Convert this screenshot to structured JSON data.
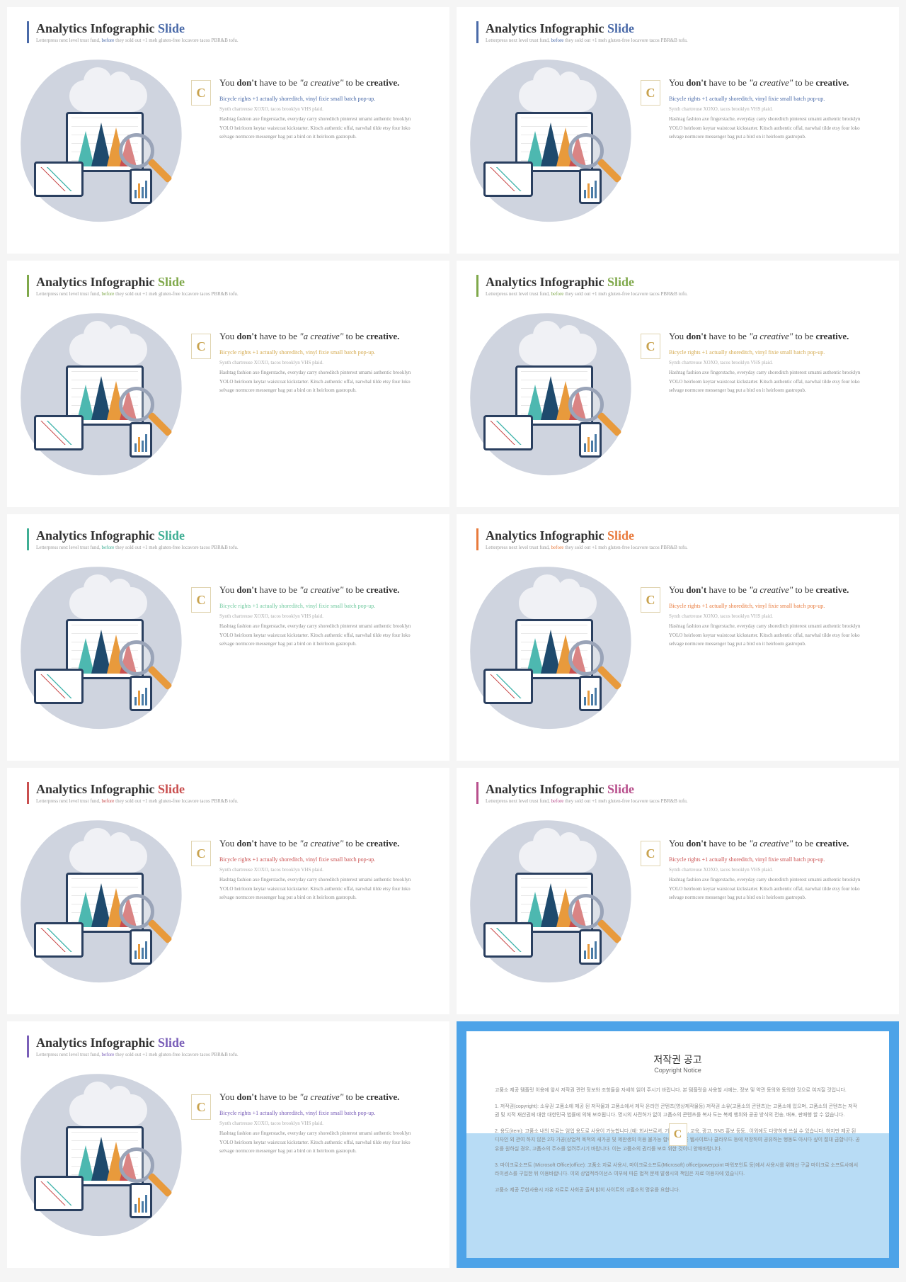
{
  "slides": [
    {
      "accent_color": "#4a6aa8",
      "highlight_color": "#4a6aa8",
      "subtitle_accent": "before"
    },
    {
      "accent_color": "#4a6aa8",
      "highlight_color": "#4a6aa8",
      "subtitle_accent": "before"
    },
    {
      "accent_color": "#7fa84a",
      "highlight_color": "#d4a94e",
      "subtitle_accent": "before"
    },
    {
      "accent_color": "#7fa84a",
      "highlight_color": "#d4a94e",
      "subtitle_accent": "before"
    },
    {
      "accent_color": "#3fae94",
      "highlight_color": "#6fc99e",
      "subtitle_accent": "before"
    },
    {
      "accent_color": "#e87a3c",
      "highlight_color": "#e87a3c",
      "subtitle_accent": "before"
    },
    {
      "accent_color": "#c94f4f",
      "highlight_color": "#c94f4f",
      "subtitle_accent": "before"
    },
    {
      "accent_color": "#b84f8c",
      "highlight_color": "#c94f4f",
      "subtitle_accent": "before"
    },
    {
      "accent_color": "#7a5fb8",
      "highlight_color": "#7a5fb8",
      "subtitle_accent": "before"
    }
  ],
  "common": {
    "title_prefix": "Analytics Infographic ",
    "title_accent": "Slide",
    "subtitle_pre": "Letterpress next level trust fund, ",
    "subtitle_accent_word": "before",
    "subtitle_post": " they sold out +1 meh gluten-free locavore tacos PBR&B tofu.",
    "quote_1": "You ",
    "quote_2": "don't",
    "quote_3": " have to be ",
    "quote_4": "\"a creative\"",
    "quote_5": " to be ",
    "quote_6": "creative.",
    "highlight_text": "Bicycle rights +1 actually shoreditch, vinyl fixie small batch pop-up.",
    "gray_text": "Synth chartreuse XOXO, tacos brooklyn VHS plaid.",
    "body_text": "Hashtag fashion axe fingerstache, everyday carry shoreditch pinterest umami authentic brooklyn YOLO heirloom keytar waistcoat kickstarter. Kitsch authentic offal, narwhal tilde etsy four loko selvage normcore messenger bag put a bird on it heirloom gastropub.",
    "badge_letter": "C"
  },
  "copyright": {
    "title": "저작권 공고",
    "subtitle": "Copyright Notice",
    "p1": "고품소 제공 템플릿 이용에 앞서 저작권 관련 정보와 조항들을 자세히 읽어 주시기 바랍니다. 본 템플릿을 사용할 시에는, 정보 및 약관 동의와 동의한 것으로 여겨질 것입니다.",
    "p2": "1. 저작권(copyright): 소유권 고품소에 제공 된 저작물과 고품소에서 제작 온라인 콘텐츠(영상제작물등) 저작권 소유(고품소의 콘텐츠)는 고품소에 있으며, 고품소의 콘텐츠는 저작권 및 지적 재산권에 대한 대한민국 법률에 의해 보호됩니다. 명시의 사전허가 없이 고품소의 콘텐츠를 복사 도는 복제 행위와 공공 방식의 전송, 배포, 판매행 할 수 없습니다.",
    "p3": "2. 용도(item): 고품소 내의 자료는 엄업 용도로 사용이 가능합니다.(예: 회사브로셔, 기업마케팅, 교육, 광고, SNS 홍보 등등.. 이외에도 다양하게 쓰실 수 있습니다. 하지만 제공 된 디자인 외 관여 하지 않은 2차 가공(상업적 목적의 새가공 및 제판생의 이용 불가능 합니다. 다른 웹사이트나 클라우드 등에 저장하여 공유하는 행동도 아시다 싶이 절대 금합니다. 공유를 원하실 경우, 고품소의 주소를 알려주시기 바랍니다. 이는 고품소의 권리를 보호 위한 것이니 양해바랍니다.",
    "p4": "3. 마이크로소프트 (Microsoft Office)office): 고품소 자료 사용시, 마이크로소프트(Microsoft) office(powerpoint 파워포인트 등)에서 사용시를 위해선 구글 마이크로 소프트사에서 라이센스를 구입한 뒤 이용바랍니다. 이외 상업적라이선스 여부에 따른 법적 문제 발생시의 책임은 자료 이용자에 있습니다.",
    "p5": "고품소 제공 무한사용시 자유 자료로 사회공 출처 밝히 사이트의 고필소의 명유를 요합니다."
  }
}
